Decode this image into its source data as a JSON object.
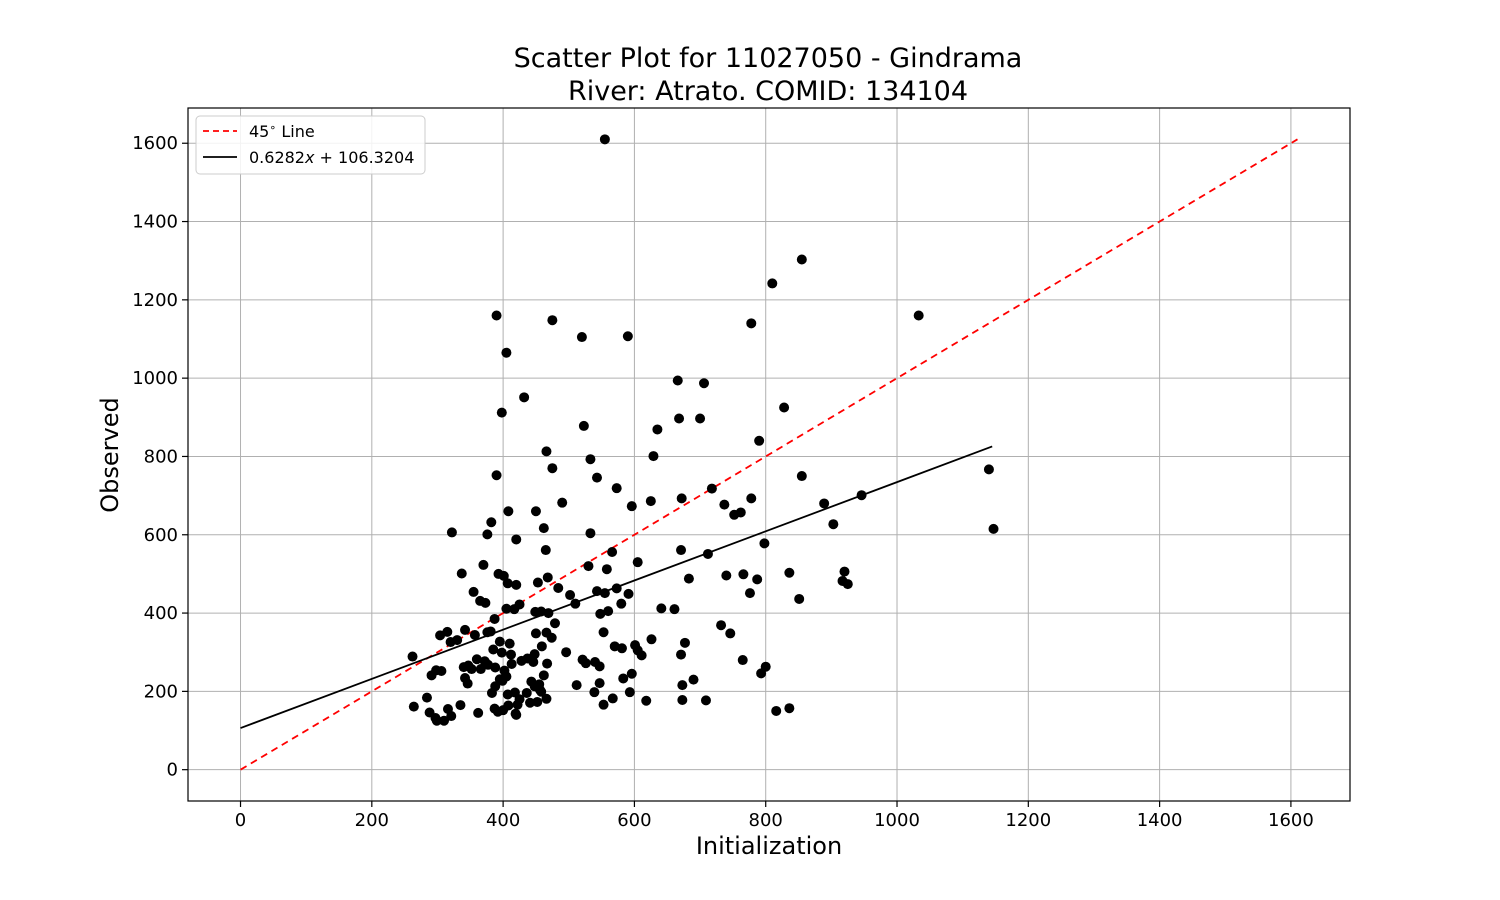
{
  "chart_data": {
    "type": "scatter",
    "title_line1": "Scatter Plot for 11027050 - Gindrama",
    "title_line2": "River: Atrato. COMID: 134104",
    "xlabel": "Initialization",
    "ylabel": "Observed",
    "xlim": [
      -80,
      1690
    ],
    "ylim": [
      -80,
      1690
    ],
    "xticks": [
      0,
      200,
      400,
      600,
      800,
      1000,
      1200,
      1400,
      1600
    ],
    "yticks": [
      0,
      200,
      400,
      600,
      800,
      1000,
      1200,
      1400,
      1600
    ],
    "grid": true,
    "legend_position": "top-left",
    "legend": [
      "45$^\\circ$ Line",
      "0.6282x + 106.3204"
    ],
    "lines": [
      {
        "name": "45° Line",
        "color": "#ff0000",
        "dashed": true,
        "x": [
          0,
          1610
        ],
        "y": [
          0,
          1610
        ]
      },
      {
        "name": "0.6282x + 106.3204",
        "color": "#000000",
        "dashed": false,
        "x": [
          0,
          1145
        ],
        "y": [
          106.3,
          825.6
        ]
      }
    ],
    "point_color": "#000000",
    "points": [
      [
        555,
        1610
      ],
      [
        855,
        1303
      ],
      [
        810,
        1242
      ],
      [
        1033,
        1160
      ],
      [
        390,
        1160
      ],
      [
        475,
        1148
      ],
      [
        778,
        1140
      ],
      [
        590,
        1107
      ],
      [
        520,
        1105
      ],
      [
        405,
        1065
      ],
      [
        666,
        994
      ],
      [
        706,
        987
      ],
      [
        432,
        951
      ],
      [
        398,
        912
      ],
      [
        828,
        925
      ],
      [
        523,
        878
      ],
      [
        668,
        897
      ],
      [
        700,
        897
      ],
      [
        635,
        869
      ],
      [
        790,
        840
      ],
      [
        466,
        813
      ],
      [
        629,
        801
      ],
      [
        533,
        793
      ],
      [
        475,
        770
      ],
      [
        390,
        752
      ],
      [
        855,
        750
      ],
      [
        543,
        746
      ],
      [
        573,
        719
      ],
      [
        718,
        718
      ],
      [
        672,
        693
      ],
      [
        778,
        693
      ],
      [
        625,
        686
      ],
      [
        490,
        682
      ],
      [
        737,
        677
      ],
      [
        596,
        673
      ],
      [
        889,
        680
      ],
      [
        762,
        657
      ],
      [
        752,
        651
      ],
      [
        408,
        660
      ],
      [
        450,
        660
      ],
      [
        946,
        701
      ],
      [
        1140,
        767
      ],
      [
        1147,
        615
      ],
      [
        322,
        606
      ],
      [
        376,
        601
      ],
      [
        462,
        617
      ],
      [
        903,
        627
      ],
      [
        533,
        604
      ],
      [
        382,
        632
      ],
      [
        420,
        588
      ],
      [
        798,
        578
      ],
      [
        566,
        556
      ],
      [
        465,
        561
      ],
      [
        671,
        561
      ],
      [
        712,
        551
      ],
      [
        605,
        530
      ],
      [
        530,
        520
      ],
      [
        370,
        523
      ],
      [
        558,
        512
      ],
      [
        836,
        503
      ],
      [
        920,
        506
      ],
      [
        337,
        501
      ],
      [
        393,
        500
      ],
      [
        401,
        495
      ],
      [
        468,
        491
      ],
      [
        683,
        488
      ],
      [
        740,
        496
      ],
      [
        766,
        499
      ],
      [
        787,
        486
      ],
      [
        917,
        482
      ],
      [
        925,
        474
      ],
      [
        407,
        476
      ],
      [
        420,
        472
      ],
      [
        453,
        478
      ],
      [
        484,
        464
      ],
      [
        573,
        463
      ],
      [
        555,
        451
      ],
      [
        591,
        449
      ],
      [
        776,
        451
      ],
      [
        355,
        454
      ],
      [
        365,
        431
      ],
      [
        373,
        426
      ],
      [
        502,
        446
      ],
      [
        543,
        456
      ],
      [
        510,
        424
      ],
      [
        851,
        436
      ],
      [
        580,
        424
      ],
      [
        641,
        412
      ],
      [
        661,
        410
      ],
      [
        449,
        403
      ],
      [
        458,
        404
      ],
      [
        469,
        400
      ],
      [
        548,
        398
      ],
      [
        560,
        405
      ],
      [
        405,
        411
      ],
      [
        417,
        410
      ],
      [
        425,
        422
      ],
      [
        387,
        385
      ],
      [
        479,
        374
      ],
      [
        732,
        369
      ],
      [
        746,
        348
      ],
      [
        553,
        351
      ],
      [
        450,
        348
      ],
      [
        466,
        350
      ],
      [
        474,
        337
      ],
      [
        381,
        353
      ],
      [
        376,
        351
      ],
      [
        315,
        352
      ],
      [
        342,
        357
      ],
      [
        357,
        344
      ],
      [
        304,
        343
      ],
      [
        330,
        331
      ],
      [
        395,
        327
      ],
      [
        410,
        322
      ],
      [
        626,
        333
      ],
      [
        677,
        324
      ],
      [
        459,
        315
      ],
      [
        496,
        300
      ],
      [
        601,
        318
      ],
      [
        570,
        315
      ],
      [
        581,
        310
      ],
      [
        385,
        307
      ],
      [
        398,
        299
      ],
      [
        412,
        294
      ],
      [
        437,
        284
      ],
      [
        448,
        295
      ],
      [
        360,
        282
      ],
      [
        372,
        277
      ],
      [
        413,
        270
      ],
      [
        467,
        271
      ],
      [
        521,
        281
      ],
      [
        526,
        272
      ],
      [
        540,
        275
      ],
      [
        547,
        264
      ],
      [
        611,
        292
      ],
      [
        671,
        294
      ],
      [
        765,
        280
      ],
      [
        800,
        263
      ],
      [
        262,
        289
      ],
      [
        291,
        241
      ],
      [
        298,
        254
      ],
      [
        306,
        252
      ],
      [
        320,
        326
      ],
      [
        340,
        262
      ],
      [
        352,
        257
      ],
      [
        366,
        257
      ],
      [
        377,
        268
      ],
      [
        388,
        261
      ],
      [
        402,
        253
      ],
      [
        347,
        266
      ],
      [
        342,
        234
      ],
      [
        346,
        220
      ],
      [
        395,
        231
      ],
      [
        405,
        238
      ],
      [
        428,
        278
      ],
      [
        446,
        275
      ],
      [
        462,
        241
      ],
      [
        388,
        213
      ],
      [
        383,
        196
      ],
      [
        399,
        227
      ],
      [
        407,
        192
      ],
      [
        418,
        197
      ],
      [
        425,
        180
      ],
      [
        436,
        196
      ],
      [
        448,
        213
      ],
      [
        455,
        218
      ],
      [
        443,
        225
      ],
      [
        458,
        199
      ],
      [
        466,
        181
      ],
      [
        512,
        216
      ],
      [
        547,
        221
      ],
      [
        583,
        233
      ],
      [
        596,
        245
      ],
      [
        593,
        198
      ],
      [
        539,
        198
      ],
      [
        673,
        216
      ],
      [
        690,
        230
      ],
      [
        793,
        246
      ],
      [
        284,
        184
      ],
      [
        264,
        161
      ],
      [
        288,
        146
      ],
      [
        299,
        125
      ],
      [
        297,
        132
      ],
      [
        310,
        125
      ],
      [
        321,
        137
      ],
      [
        316,
        155
      ],
      [
        335,
        165
      ],
      [
        362,
        145
      ],
      [
        387,
        156
      ],
      [
        392,
        148
      ],
      [
        400,
        152
      ],
      [
        408,
        164
      ],
      [
        422,
        166
      ],
      [
        420,
        140
      ],
      [
        419,
        143
      ],
      [
        441,
        171
      ],
      [
        452,
        173
      ],
      [
        456,
        204
      ],
      [
        567,
        182
      ],
      [
        553,
        166
      ],
      [
        618,
        176
      ],
      [
        673,
        178
      ],
      [
        709,
        177
      ],
      [
        816,
        150
      ],
      [
        836,
        157
      ],
      [
        605,
        305
      ]
    ]
  }
}
